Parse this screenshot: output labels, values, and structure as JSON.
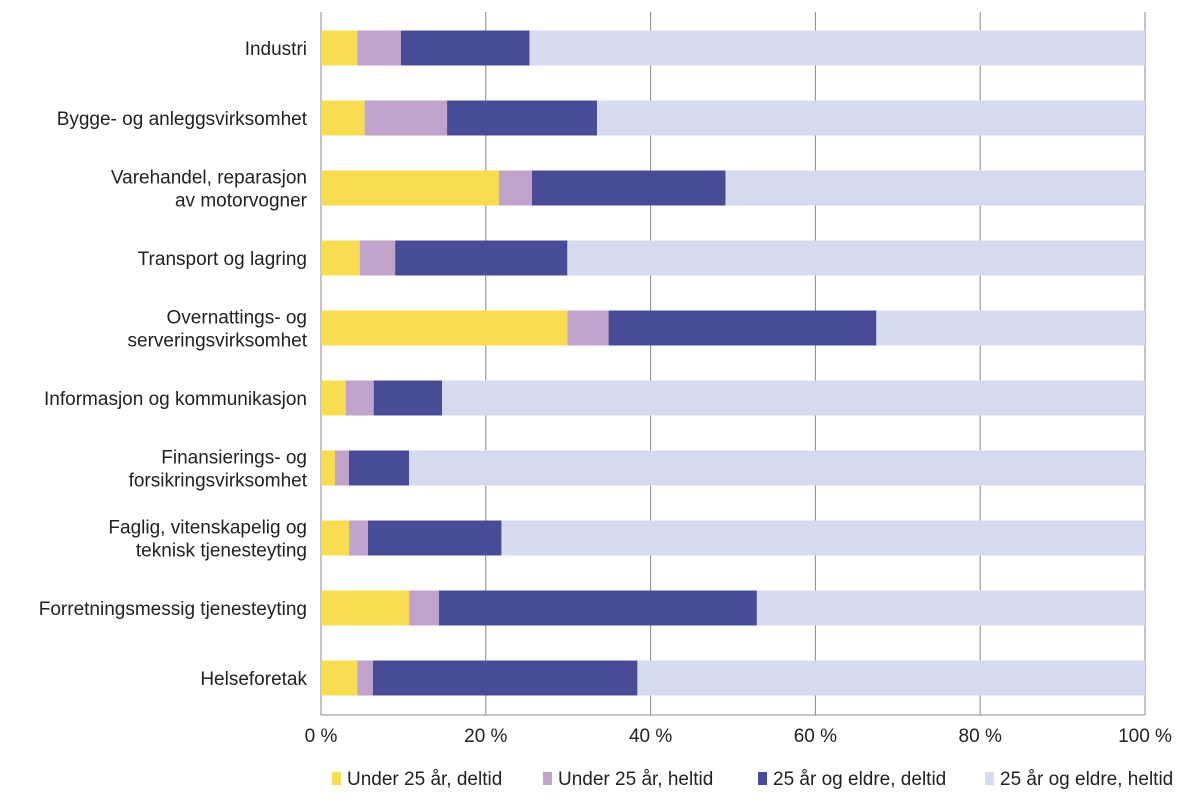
{
  "chart_data": {
    "type": "bar",
    "orientation": "horizontal",
    "stacked": true,
    "categories": [
      [
        "Industri"
      ],
      [
        "Bygge- og anleggsvirksomhet"
      ],
      [
        "Varehandel, reparasjon",
        "av motorvogner"
      ],
      [
        "Transport og lagring"
      ],
      [
        "Overnattings- og",
        "serveringsvirksomhet"
      ],
      [
        "Informasjon og kommunikasjon"
      ],
      [
        "Finansierings- og",
        "forsikringsvirksomhet"
      ],
      [
        "Faglig, vitenskapelig og",
        "teknisk tjenesteyting"
      ],
      [
        "Forretningsmessig tjenesteyting"
      ],
      [
        "Helseforetak"
      ]
    ],
    "series": [
      {
        "name": "Under 25 år, deltid",
        "color": "#F8DC52",
        "values": [
          4.4,
          5.3,
          21.6,
          4.7,
          29.9,
          3.0,
          1.7,
          3.4,
          10.7,
          4.4
        ]
      },
      {
        "name": "Under 25 år, heltid",
        "color": "#C0A3CB",
        "values": [
          5.3,
          10.0,
          4.0,
          4.3,
          5.0,
          3.4,
          1.7,
          2.3,
          3.6,
          1.9
        ]
      },
      {
        "name": "25 år og eldre, deltid",
        "color": "#484C97",
        "values": [
          15.6,
          18.2,
          23.5,
          20.9,
          32.5,
          8.3,
          7.3,
          16.2,
          38.6,
          32.1
        ]
      },
      {
        "name": "25 år og eldre, heltid",
        "color": "#D6DBEF",
        "values": [
          74.7,
          66.5,
          50.9,
          70.1,
          32.6,
          85.3,
          89.3,
          78.1,
          47.1,
          61.6
        ]
      }
    ],
    "xlim": [
      0,
      100
    ],
    "xticks": [
      "0 %",
      "20 %",
      "40 %",
      "60 %",
      "80 %",
      "100 %"
    ],
    "grid": true,
    "legend": "bottom"
  }
}
